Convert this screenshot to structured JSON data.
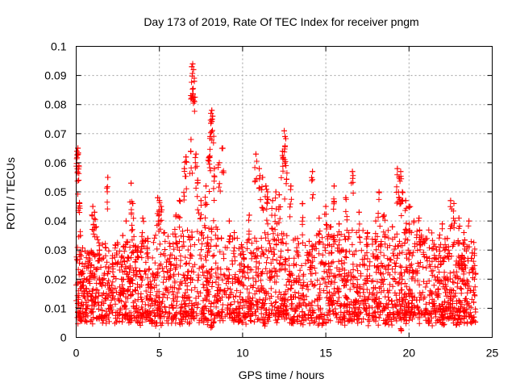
{
  "chart_data": {
    "type": "scatter",
    "title": "Day 173 of 2019, Rate Of TEC Index for receiver pngm",
    "xlabel": "GPS time / hours",
    "ylabel": "ROTI / TECUs",
    "xlim": [
      0,
      25
    ],
    "ylim": [
      0,
      0.1
    ],
    "x_ticks": [
      0,
      5,
      10,
      15,
      20,
      25
    ],
    "y_ticks": [
      0,
      0.01,
      0.02,
      0.03,
      0.04,
      0.05,
      0.06,
      0.07,
      0.08,
      0.09,
      0.1
    ],
    "x_tick_labels": [
      "0",
      "5",
      "10",
      "15",
      "20",
      "25"
    ],
    "y_tick_labels": [
      "0",
      "0.01",
      "0.02",
      "0.03",
      "0.04",
      "0.05",
      "0.06",
      "0.07",
      "0.08",
      "0.09",
      "0.1"
    ],
    "grid": true,
    "marker": "+",
    "series": [
      {
        "name": "ROTI",
        "color": "#ff0000",
        "points": [
          [
            0.0,
            0.018
          ],
          [
            0.05,
            0.064
          ],
          [
            0.1,
            0.065
          ],
          [
            0.12,
            0.063
          ],
          [
            0.15,
            0.054
          ],
          [
            0.2,
            0.046
          ],
          [
            0.25,
            0.035
          ],
          [
            0.3,
            0.028
          ],
          [
            0.4,
            0.022
          ],
          [
            0.5,
            0.016
          ],
          [
            0.6,
            0.012
          ],
          [
            0.8,
            0.02
          ],
          [
            1.0,
            0.045
          ],
          [
            1.1,
            0.043
          ],
          [
            1.2,
            0.038
          ],
          [
            1.4,
            0.03
          ],
          [
            1.9,
            0.055
          ],
          [
            2.2,
            0.025
          ],
          [
            2.5,
            0.032
          ],
          [
            2.8,
            0.035
          ],
          [
            3.0,
            0.04
          ],
          [
            3.3,
            0.053
          ],
          [
            3.4,
            0.046
          ],
          [
            3.6,
            0.03
          ],
          [
            4.0,
            0.041
          ],
          [
            4.3,
            0.034
          ],
          [
            4.6,
            0.022
          ],
          [
            4.9,
            0.048
          ],
          [
            5.0,
            0.047
          ],
          [
            5.1,
            0.045
          ],
          [
            5.3,
            0.036
          ],
          [
            5.6,
            0.026
          ],
          [
            6.0,
            0.042
          ],
          [
            6.2,
            0.047
          ],
          [
            6.5,
            0.058
          ],
          [
            6.6,
            0.062
          ],
          [
            6.9,
            0.068
          ],
          [
            6.95,
            0.093
          ],
          [
            7.0,
            0.094
          ],
          [
            7.05,
            0.092
          ],
          [
            7.1,
            0.088
          ],
          [
            7.2,
            0.063
          ],
          [
            7.3,
            0.054
          ],
          [
            7.5,
            0.047
          ],
          [
            7.8,
            0.052
          ],
          [
            8.0,
            0.062
          ],
          [
            8.05,
            0.069
          ],
          [
            8.1,
            0.077
          ],
          [
            8.15,
            0.078
          ],
          [
            8.2,
            0.076
          ],
          [
            8.3,
            0.058
          ],
          [
            8.6,
            0.06
          ],
          [
            8.8,
            0.065
          ],
          [
            9.2,
            0.04
          ],
          [
            9.5,
            0.036
          ],
          [
            10.0,
            0.031
          ],
          [
            10.4,
            0.042
          ],
          [
            10.8,
            0.063
          ],
          [
            11.0,
            0.058
          ],
          [
            11.2,
            0.055
          ],
          [
            11.4,
            0.052
          ],
          [
            11.5,
            0.05
          ],
          [
            11.8,
            0.047
          ],
          [
            12.0,
            0.05
          ],
          [
            12.2,
            0.049
          ],
          [
            12.4,
            0.064
          ],
          [
            12.5,
            0.071
          ],
          [
            12.55,
            0.069
          ],
          [
            12.6,
            0.059
          ],
          [
            12.9,
            0.052
          ],
          [
            13.3,
            0.034
          ],
          [
            13.6,
            0.046
          ],
          [
            14.0,
            0.033
          ],
          [
            14.2,
            0.057
          ],
          [
            14.6,
            0.041
          ],
          [
            15.0,
            0.045
          ],
          [
            15.3,
            0.038
          ],
          [
            15.5,
            0.052
          ],
          [
            15.8,
            0.039
          ],
          [
            16.2,
            0.048
          ],
          [
            16.6,
            0.057
          ],
          [
            17.0,
            0.043
          ],
          [
            17.5,
            0.036
          ],
          [
            18.0,
            0.04
          ],
          [
            18.2,
            0.05
          ],
          [
            18.5,
            0.042
          ],
          [
            19.0,
            0.038
          ],
          [
            19.3,
            0.058
          ],
          [
            19.4,
            0.055
          ],
          [
            19.5,
            0.057
          ],
          [
            19.6,
            0.05
          ],
          [
            19.8,
            0.047
          ],
          [
            20.0,
            0.045
          ],
          [
            20.3,
            0.04
          ],
          [
            20.6,
            0.041
          ],
          [
            21.0,
            0.034
          ],
          [
            21.5,
            0.032
          ],
          [
            22.0,
            0.039
          ],
          [
            22.3,
            0.034
          ],
          [
            22.5,
            0.047
          ],
          [
            22.7,
            0.046
          ],
          [
            23.0,
            0.041
          ],
          [
            23.3,
            0.036
          ],
          [
            23.6,
            0.04
          ],
          [
            23.8,
            0.029
          ],
          [
            24.0,
            0.022
          ],
          [
            0.3,
            0.008
          ],
          [
            1.5,
            0.007
          ],
          [
            3.2,
            0.006
          ],
          [
            4.8,
            0.005
          ],
          [
            6.3,
            0.006
          ],
          [
            8.1,
            0.004
          ],
          [
            9.9,
            0.006
          ],
          [
            11.3,
            0.005
          ],
          [
            13.0,
            0.006
          ],
          [
            14.8,
            0.005
          ],
          [
            16.4,
            0.006
          ],
          [
            18.6,
            0.005
          ],
          [
            19.5,
            0.003
          ],
          [
            21.2,
            0.006
          ],
          [
            22.9,
            0.005
          ],
          [
            23.9,
            0.007
          ]
        ],
        "band": {
          "description": "dense cloud of ROTI values across the full day",
          "x_range": [
            0,
            24
          ],
          "typical_range": [
            0.006,
            0.028
          ],
          "upper_envelope": [
            [
              0,
              0.03
            ],
            [
              2,
              0.034
            ],
            [
              4,
              0.033
            ],
            [
              6,
              0.036
            ],
            [
              8,
              0.04
            ],
            [
              10,
              0.033
            ],
            [
              12,
              0.036
            ],
            [
              14,
              0.034
            ],
            [
              16,
              0.038
            ],
            [
              18,
              0.036
            ],
            [
              20,
              0.037
            ],
            [
              22,
              0.034
            ],
            [
              24,
              0.033
            ]
          ]
        }
      }
    ]
  }
}
